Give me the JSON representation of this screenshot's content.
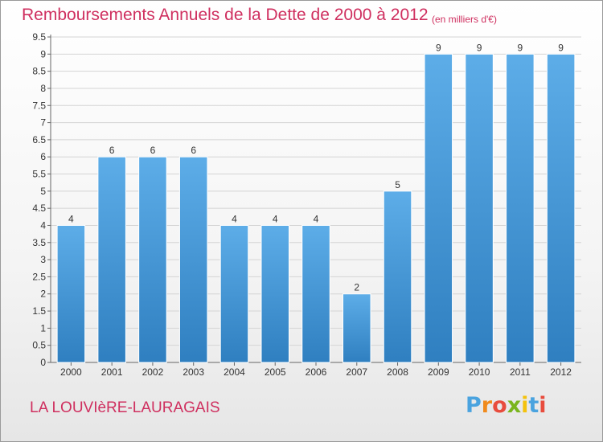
{
  "header": {
    "title": "Remboursements Annuels de la Dette de 2000 à 2012",
    "subtitle": "(en milliers d'€)"
  },
  "footer": {
    "commune": "LA LOUVIèRE-LAURAGAIS",
    "brand_letters": [
      "P",
      "r",
      "o",
      "x",
      "i",
      "t",
      "i"
    ],
    "brand_colors": [
      "#4aa3df",
      "#f08a1c",
      "#e84c3d",
      "#7ab51d",
      "#f4c20d",
      "#4aa3df",
      "#e84c3d"
    ]
  },
  "colors": {
    "bar_light": "#5dade8",
    "bar_dark": "#2f7fc0",
    "title": "#cf2f5f"
  },
  "chart_data": {
    "type": "bar",
    "categories": [
      "2000",
      "2001",
      "2002",
      "2003",
      "2004",
      "2005",
      "2006",
      "2007",
      "2008",
      "2009",
      "2010",
      "2011",
      "2012"
    ],
    "values": [
      4,
      6,
      6,
      6,
      4,
      4,
      4,
      2,
      5,
      9,
      9,
      9,
      9
    ],
    "data_labels": [
      "4",
      "6",
      "6",
      "6",
      "4",
      "4",
      "4",
      "2",
      "5",
      "9",
      "9",
      "9",
      "9"
    ],
    "ylim": [
      0,
      9.5
    ],
    "yticks": [
      "0",
      "0.5",
      "1",
      "1.5",
      "2",
      "2.5",
      "3",
      "3.5",
      "4",
      "4.5",
      "5",
      "5.5",
      "6",
      "6.5",
      "7",
      "7.5",
      "8",
      "8.5",
      "9",
      "9.5"
    ],
    "grid": "horizontal"
  }
}
